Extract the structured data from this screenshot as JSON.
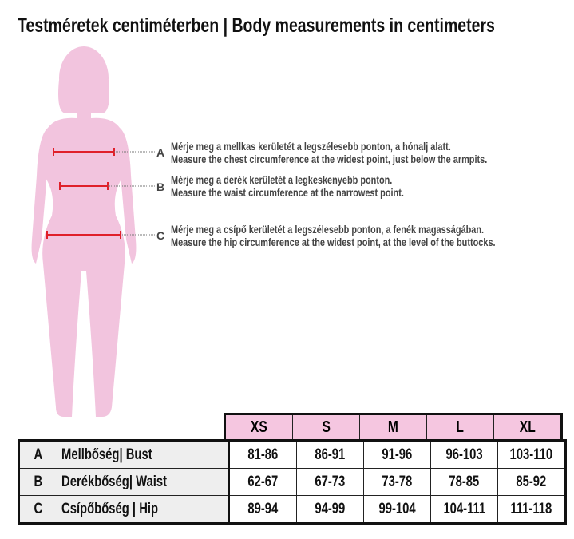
{
  "title": "Testméretek centiméterben | Body measurements in centimeters",
  "colors": {
    "silhouette": "#f2c4de",
    "measure_line": "#e0202a",
    "header_bg": "#f5c6e0"
  },
  "notes": [
    {
      "letter": "A",
      "hu": "Mérje meg a mellkas kerületét a legszélesebb ponton, a hónalj alatt.",
      "en": "Measure the chest circumference at the widest point, just below the armpits."
    },
    {
      "letter": "B",
      "hu": "Mérje meg a derék kerületét a legkeskenyebb ponton.",
      "en": "Measure the waist circumference at the narrowest point."
    },
    {
      "letter": "C",
      "hu": "Mérje meg a csípő kerületét a legszélesebb ponton, a fenék magasságában.",
      "en": "Measure the hip circumference at the widest point, at the level of the buttocks."
    }
  ],
  "table": {
    "sizes": [
      "XS",
      "S",
      "M",
      "L",
      "XL"
    ],
    "rows": [
      {
        "key": "A",
        "label": "Mellbőség| Bust",
        "values": [
          "81-86",
          "86-91",
          "91-96",
          "96-103",
          "103-110"
        ]
      },
      {
        "key": "B",
        "label": "Derékbőség| Waist",
        "values": [
          "62-67",
          "67-73",
          "73-78",
          "78-85",
          "85-92"
        ]
      },
      {
        "key": "C",
        "label": "Csípőbőség | Hip",
        "values": [
          "89-94",
          "94-99",
          "99-104",
          "104-111",
          "111-118"
        ]
      }
    ]
  }
}
